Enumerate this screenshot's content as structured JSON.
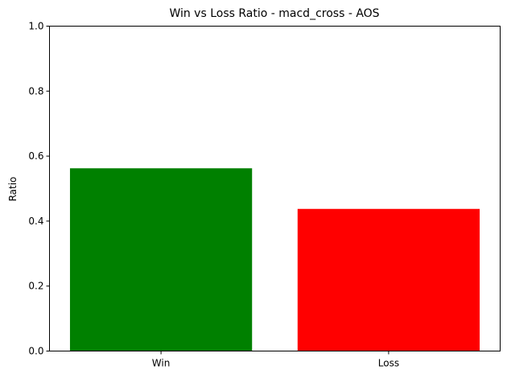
{
  "chart_data": {
    "type": "bar",
    "title": "Win vs Loss Ratio - macd_cross - AOS",
    "xlabel": "",
    "ylabel": "Ratio",
    "categories": [
      "Win",
      "Loss"
    ],
    "values": [
      0.5625,
      0.4375
    ],
    "colors": [
      "#008000",
      "#ff0000"
    ],
    "ylim": [
      0,
      1
    ],
    "yticks": [
      0.0,
      0.2,
      0.4,
      0.6,
      0.8,
      1.0
    ],
    "ytick_labels": [
      "0.0",
      "0.2",
      "0.4",
      "0.6",
      "0.8",
      "1.0"
    ],
    "grid": false,
    "legend": "none"
  }
}
